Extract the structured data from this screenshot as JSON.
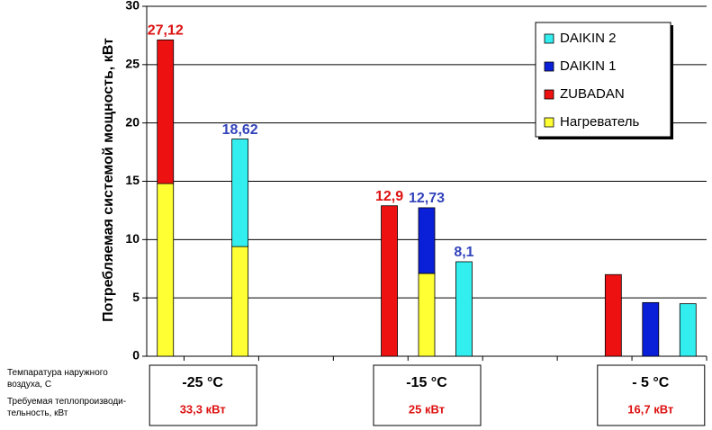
{
  "chart_data": {
    "type": "bar",
    "stacked": true,
    "ylabel": "Потребляемая системой мощность, кВт",
    "ylim": [
      0,
      30
    ],
    "yticks": [
      0,
      5,
      10,
      15,
      20,
      25,
      30
    ],
    "grid": true,
    "groups": [
      {
        "temperature": "-25 °C",
        "power": "33,3 кВт"
      },
      {
        "temperature": "-15 °C",
        "power": "25 кВт"
      },
      {
        "temperature": "- 5 °C",
        "power": "16,7 кВт"
      }
    ],
    "series": [
      {
        "name": "Нагреватель",
        "color": "#ffff33",
        "values": [
          14.8,
          null,
          9.4,
          null,
          7.1,
          null,
          null,
          null,
          null
        ]
      },
      {
        "name": "ZUBADAN",
        "color": "#ee1111",
        "values": [
          12.32,
          null,
          null,
          12.9,
          null,
          null,
          7.0,
          null,
          null
        ]
      },
      {
        "name": "DAIKIN 1",
        "color": "#0a1fd8",
        "values": [
          null,
          null,
          null,
          null,
          5.63,
          null,
          null,
          4.6,
          null
        ]
      },
      {
        "name": "DAIKIN 2",
        "color": "#33eeee",
        "values": [
          null,
          null,
          9.22,
          null,
          null,
          8.1,
          null,
          null,
          4.5
        ]
      }
    ],
    "totals": {
      "values": [
        27.12,
        null,
        18.62,
        12.9,
        12.73,
        8.1,
        null,
        null,
        null
      ],
      "value_labels": [
        "27,12",
        null,
        "18,62",
        "12,9",
        "12,73",
        "8,1",
        null,
        null,
        null
      ],
      "colors": [
        "#dd1111",
        null,
        "#3344bb",
        "#dd1111",
        "#3344bb",
        "#3344bb",
        null,
        null,
        null
      ]
    },
    "row_labels": [
      "Темпаратура наружного воздуха, С",
      "Требуемая теплопроизводи-тельность, кВт"
    ]
  }
}
